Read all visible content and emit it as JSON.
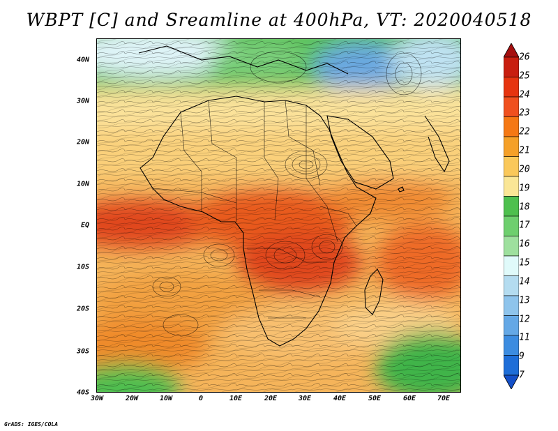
{
  "title": "WBPT [C] and Sreamline at 400hPa, VT: 2020040518",
  "map": {
    "lat_labels": [
      "40N",
      "30N",
      "20N",
      "10N",
      "EQ",
      "10S",
      "20S",
      "30S",
      "40S"
    ],
    "lon_labels": [
      "30W",
      "20W",
      "10W",
      "0",
      "10E",
      "20E",
      "30E",
      "40E",
      "50E",
      "60E",
      "70E"
    ],
    "lat_range": [
      -40,
      45
    ],
    "lon_range": [
      -30,
      75
    ],
    "fields": [
      "wet-bulb potential temperature shading",
      "400hPa streamlines",
      "coastlines",
      "country borders"
    ]
  },
  "colorbar": {
    "labels": [
      "26",
      "25",
      "24",
      "23",
      "22",
      "21",
      "20",
      "19",
      "18",
      "17",
      "16",
      "15",
      "14",
      "13",
      "12",
      "11",
      "9",
      "7"
    ],
    "colors": [
      "#a50f0f",
      "#c81e0f",
      "#e6340f",
      "#f0501e",
      "#f57814",
      "#f5a028",
      "#fac85a",
      "#fae696",
      "#4ec04e",
      "#6ecf6e",
      "#9ee09e",
      "#e0fafa",
      "#b4dcf0",
      "#8ec4ec",
      "#64a8e6",
      "#3c8ce0",
      "#1e6ed8",
      "#1450c8"
    ]
  },
  "credit": "GrADS: IGES/COLA"
}
